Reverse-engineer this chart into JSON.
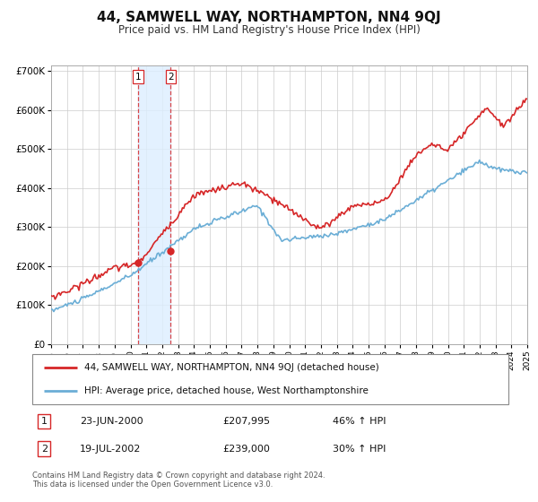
{
  "title": "44, SAMWELL WAY, NORTHAMPTON, NN4 9QJ",
  "subtitle": "Price paid vs. HM Land Registry's House Price Index (HPI)",
  "legend_line1": "44, SAMWELL WAY, NORTHAMPTON, NN4 9QJ (detached house)",
  "legend_line2": "HPI: Average price, detached house, West Northamptonshire",
  "transaction1_date": "23-JUN-2000",
  "transaction1_price": "£207,995",
  "transaction1_hpi": "46% ↑ HPI",
  "transaction2_date": "19-JUL-2002",
  "transaction2_price": "£239,000",
  "transaction2_hpi": "30% ↑ HPI",
  "footnote1": "Contains HM Land Registry data © Crown copyright and database right 2024.",
  "footnote2": "This data is licensed under the Open Government Licence v3.0.",
  "hpi_color": "#6baed6",
  "price_color": "#d62728",
  "marker_color": "#d62728",
  "span_color": "#ddeeff",
  "background_color": "#ffffff",
  "grid_color": "#cccccc",
  "transaction1_x": 2000.47,
  "transaction2_x": 2002.54,
  "transaction1_y": 207995,
  "transaction2_y": 239000,
  "xmin": 1995,
  "xmax": 2025,
  "ymin": 0,
  "ymax": 700000,
  "yticks": [
    0,
    100000,
    200000,
    300000,
    400000,
    500000,
    600000,
    700000
  ],
  "ylabel_format": [
    "£0",
    "£100K",
    "£200K",
    "£300K",
    "£400K",
    "£500K",
    "£600K",
    "£700K"
  ]
}
